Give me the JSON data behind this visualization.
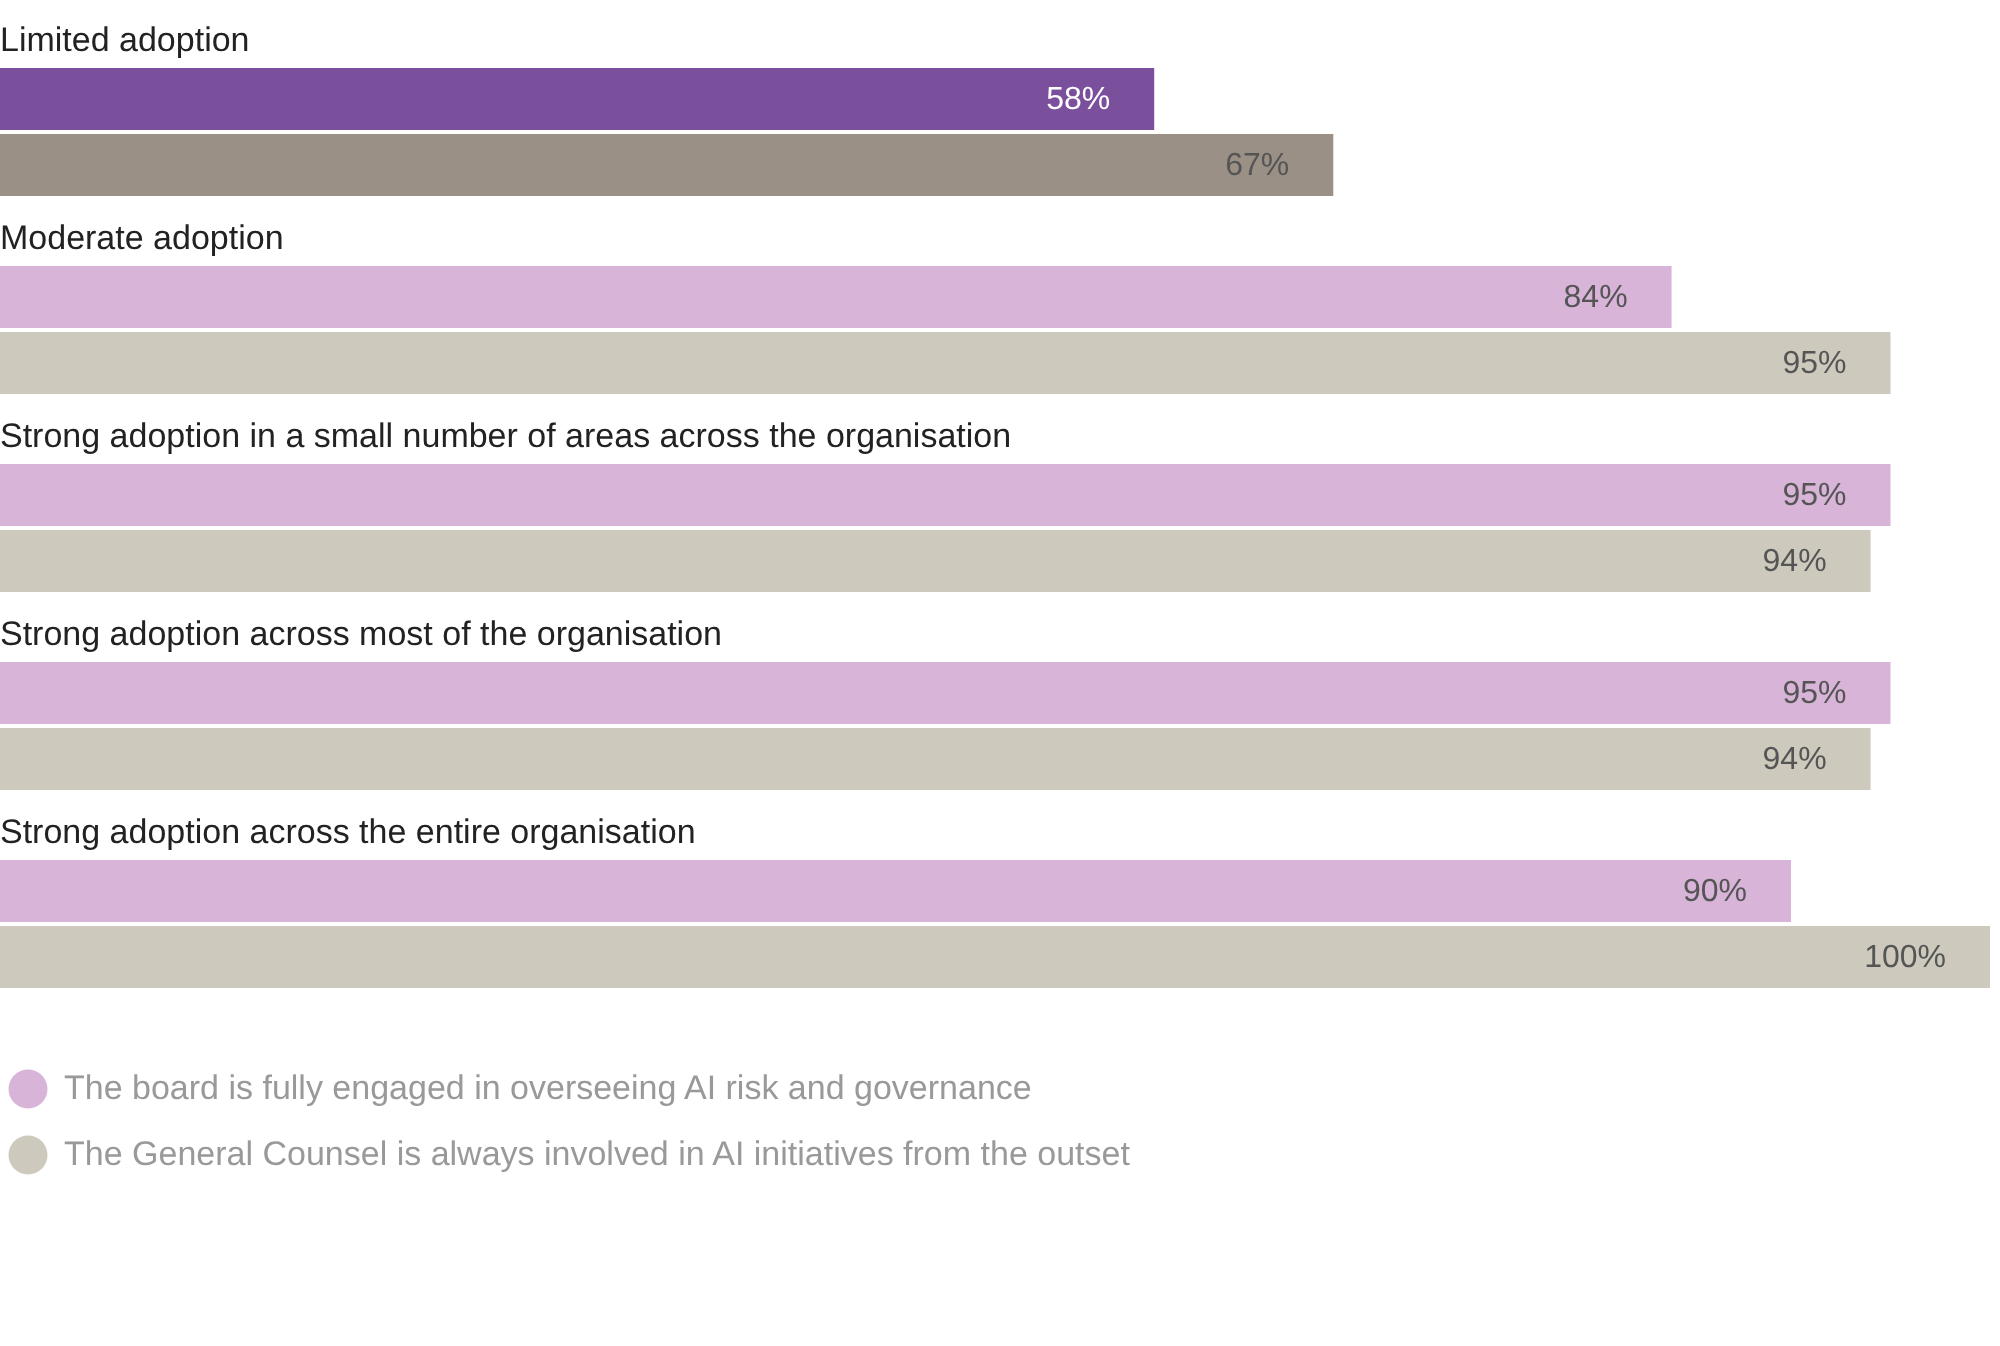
{
  "chart_data": {
    "type": "bar",
    "orientation": "horizontal",
    "categories": [
      "Limited adoption",
      "Moderate adoption",
      "Strong adoption in a small number of areas across the organisation",
      "Strong adoption across most of the organisation",
      "Strong adoption across the entire organisation"
    ],
    "series": [
      {
        "name": "The board is fully engaged in overseeing AI risk and governance",
        "color": "#d8b4d9",
        "colors": [
          "#7a509d",
          "#d8b4d9",
          "#d8b4d9",
          "#d8b4d9",
          "#d8b4d9"
        ],
        "values": [
          58,
          84,
          95,
          95,
          90
        ],
        "value_labels": [
          "58%",
          "84%",
          "95%",
          "95%",
          "90%"
        ]
      },
      {
        "name": "The General Counsel is always involved in AI initiatives from the outset",
        "color": "#cdcabd",
        "colors": [
          "#9a9086",
          "#cdcabd",
          "#cdcabd",
          "#cdcabd",
          "#cdcabd"
        ],
        "values": [
          67,
          95,
          94,
          94,
          100
        ],
        "value_labels": [
          "67%",
          "95%",
          "94%",
          "94%",
          "100%"
        ]
      }
    ],
    "xlim": [
      0,
      100
    ],
    "legend": "bottom left"
  }
}
